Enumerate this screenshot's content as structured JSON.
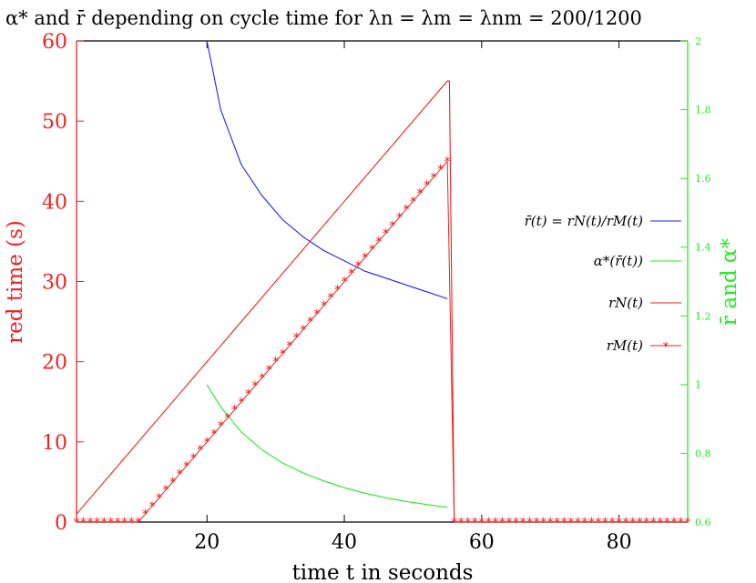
{
  "chart_data": {
    "type": "line",
    "title": "α* and r̄ depending on cycle time for λn = λm = λnm = 200/1200",
    "xlabel": "time t in seconds",
    "ylabel_left": "red time (s)",
    "ylabel_right": "r̄ and α*",
    "xlim": [
      1,
      90
    ],
    "ylim_left": [
      0,
      60
    ],
    "ylim_right": [
      0.6,
      2.0
    ],
    "x_ticks": [
      "20",
      "40",
      "60",
      "80"
    ],
    "y_left_ticks": [
      "0",
      "10",
      "20",
      "30",
      "40",
      "50",
      "60"
    ],
    "y_right_ticks": [
      "0.6",
      "0.8",
      "1",
      "1.2",
      "1.4",
      "1.6",
      "1.8",
      "2"
    ],
    "legend_position": "right-center",
    "grid": false,
    "series": [
      {
        "name": "r̄(t) = rN(t)/rM(t)",
        "axis": "right",
        "color": "#2222ee",
        "x": [
          20,
          22,
          25,
          28,
          31,
          34,
          37,
          40,
          43,
          46,
          49,
          52,
          55
        ],
        "y": [
          2.0,
          1.8,
          1.64,
          1.55,
          1.48,
          1.43,
          1.39,
          1.36,
          1.33,
          1.31,
          1.29,
          1.27,
          1.25
        ]
      },
      {
        "name": "α*(r̄(t))",
        "axis": "right",
        "color": "#22ee22",
        "x": [
          20,
          22,
          25,
          28,
          31,
          34,
          37,
          40,
          43,
          46,
          49,
          52,
          55
        ],
        "y": [
          1.0,
          0.935,
          0.862,
          0.81,
          0.772,
          0.743,
          0.72,
          0.7,
          0.684,
          0.671,
          0.66,
          0.651,
          0.643
        ]
      },
      {
        "name": "rN(t)",
        "axis": "left",
        "color": "#ee2222",
        "x": [
          1,
          55,
          55.3,
          56,
          90
        ],
        "y": [
          1,
          55,
          55,
          0,
          0
        ]
      },
      {
        "name": "rM(t)",
        "axis": "left",
        "color": "#ee2222",
        "marker": "*",
        "rule": "y = max(0, t - 10) for t <= 55; y = 0 for t > 55"
      }
    ],
    "legend": {
      "items": [
        {
          "label": "r̄(t) = rN(t)/rM(t)",
          "color": "#2222ee",
          "marker": false
        },
        {
          "label": "α*(r̄(t))",
          "color": "#22ee22",
          "marker": false
        },
        {
          "label": "rN(t)",
          "color": "#ee2222",
          "marker": false
        },
        {
          "label": "rM(t)",
          "color": "#ee2222",
          "marker": true
        }
      ]
    }
  }
}
